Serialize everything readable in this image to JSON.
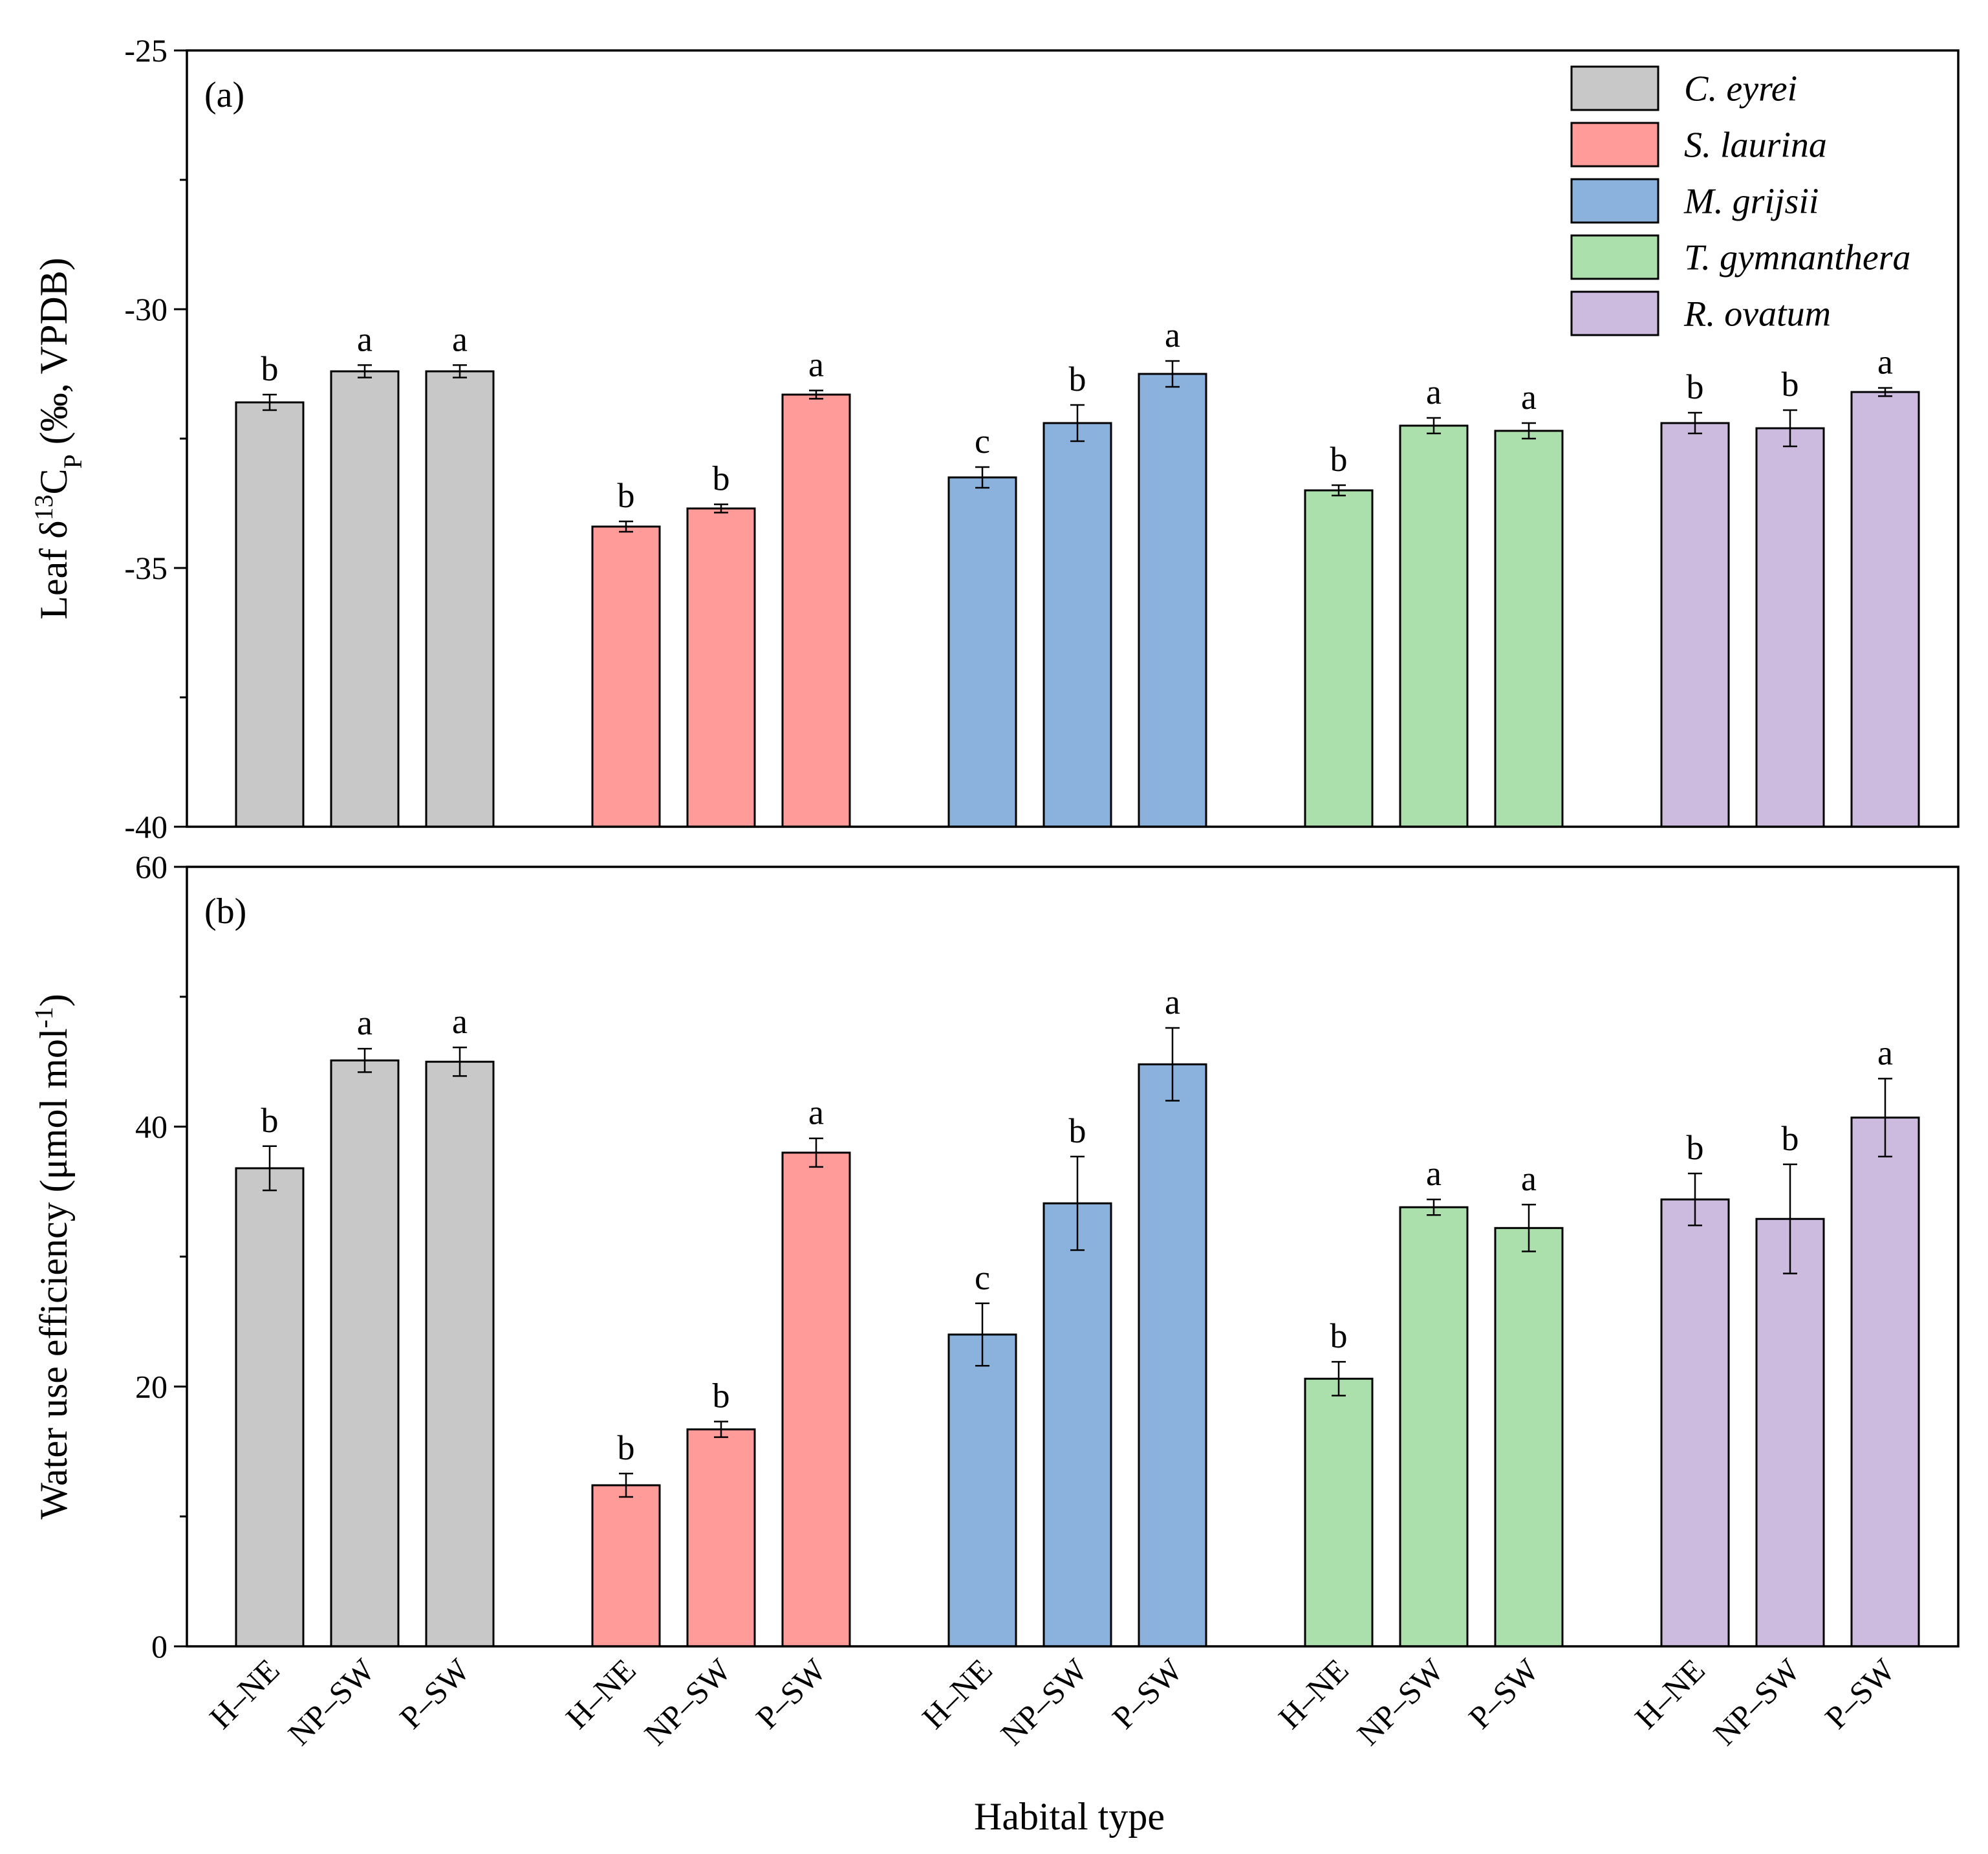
{
  "chart_data": [
    {
      "type": "bar",
      "panel_label": "(a)",
      "ylabel": {
        "pre": "Leaf δ",
        "sup": "13",
        "mid": "C",
        "sub": "P",
        "post": " (‰, VPDB)"
      },
      "ylim": [
        -40,
        -25
      ],
      "y_inverted": true,
      "yticks": [
        -40,
        -35,
        -30,
        -25
      ],
      "yminor": [
        -37.5,
        -32.5,
        -27.5
      ],
      "legend_position": "top-right",
      "species": [
        {
          "name": "C. eyrei",
          "color": "#c8c8c8",
          "values": [
            -31.8,
            -31.2,
            -31.2
          ],
          "errors": [
            0.15,
            0.12,
            0.12
          ],
          "letters": [
            "b",
            "a",
            "a"
          ]
        },
        {
          "name": "S. laurina",
          "color": "#ff9b98",
          "values": [
            -34.2,
            -33.85,
            -31.65
          ],
          "errors": [
            0.1,
            0.08,
            0.08
          ],
          "letters": [
            "b",
            "b",
            "a"
          ]
        },
        {
          "name": "M. grijsii",
          "color": "#8ab2dc",
          "values": [
            -33.25,
            -32.2,
            -31.25
          ],
          "errors": [
            0.2,
            0.35,
            0.25
          ],
          "letters": [
            "c",
            "b",
            "a"
          ]
        },
        {
          "name": "T. gymnanthera",
          "color": "#abdfab",
          "values": [
            -33.5,
            -32.25,
            -32.35
          ],
          "errors": [
            0.1,
            0.15,
            0.15
          ],
          "letters": [
            "b",
            "a",
            "a"
          ]
        },
        {
          "name": "R. ovatum",
          "color": "#cdbadf",
          "values": [
            -32.2,
            -32.3,
            -31.6
          ],
          "errors": [
            0.2,
            0.35,
            0.08
          ],
          "letters": [
            "b",
            "b",
            "a"
          ]
        }
      ]
    },
    {
      "type": "bar",
      "panel_label": "(b)",
      "ylabel": {
        "pre": "Water use efficiency (μmol mol",
        "sup": "-1",
        "post": ")"
      },
      "ylim": [
        0,
        60
      ],
      "yticks": [
        0,
        20,
        40,
        60
      ],
      "yminor": [
        10,
        30,
        50
      ],
      "xlabel": "Habital type",
      "categories": [
        "H–NE",
        "NP–SW",
        "P–SW"
      ],
      "species": [
        {
          "name": "C. eyrei",
          "color": "#c8c8c8",
          "values": [
            36.8,
            45.1,
            45.0
          ],
          "errors": [
            1.7,
            0.9,
            1.1
          ],
          "letters": [
            "b",
            "a",
            "a"
          ]
        },
        {
          "name": "S. laurina",
          "color": "#ff9b98",
          "values": [
            12.4,
            16.7,
            38.0
          ],
          "errors": [
            0.9,
            0.6,
            1.1
          ],
          "letters": [
            "b",
            "b",
            "a"
          ]
        },
        {
          "name": "M. grijsii",
          "color": "#8ab2dc",
          "values": [
            24.0,
            34.1,
            44.8
          ],
          "errors": [
            2.4,
            3.6,
            2.8
          ],
          "letters": [
            "c",
            "b",
            "a"
          ]
        },
        {
          "name": "T. gymnanthera",
          "color": "#abdfab",
          "values": [
            20.6,
            33.8,
            32.2
          ],
          "errors": [
            1.3,
            0.6,
            1.8
          ],
          "letters": [
            "b",
            "a",
            "a"
          ]
        },
        {
          "name": "R. ovatum",
          "color": "#cdbadf",
          "values": [
            34.4,
            32.9,
            40.7
          ],
          "errors": [
            2.0,
            4.2,
            3.0
          ],
          "letters": [
            "b",
            "b",
            "a"
          ]
        }
      ]
    }
  ]
}
